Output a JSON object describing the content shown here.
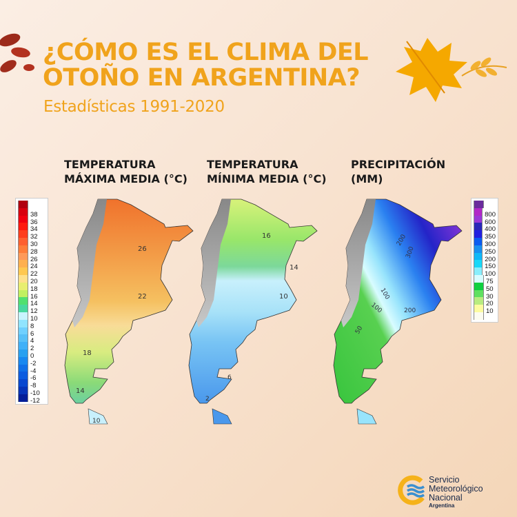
{
  "header": {
    "title_line1": "¿CÓMO ES EL CLIMA DEL",
    "title_line2": "OTOÑO EN ARGENTINA?",
    "subtitle": "Estadísticas 1991-2020",
    "accent_color": "#f0a31c"
  },
  "maps": [
    {
      "heading_line1": "TEMPERATURA",
      "heading_line2": "MÁXIMA MEDIA (°C)",
      "contour_labels": [
        "26",
        "22",
        "18",
        "14",
        "10"
      ]
    },
    {
      "heading_line1": "TEMPERATURA",
      "heading_line2": "MÍNIMA MEDIA (°C)",
      "contour_labels": [
        "16",
        "14",
        "10",
        "6",
        "2"
      ]
    },
    {
      "heading_line1": "PRECIPITACIÓN",
      "heading_line2": "(MM)",
      "contour_labels": [
        "200",
        "300",
        "100",
        "100",
        "200",
        "50"
      ]
    }
  ],
  "temp_legend": {
    "top_color": "#b00010",
    "items": [
      {
        "value": "38",
        "color": "#d8000f"
      },
      {
        "value": "36",
        "color": "#f00010"
      },
      {
        "value": "34",
        "color": "#ff1a10"
      },
      {
        "value": "32",
        "color": "#ff3e1e"
      },
      {
        "value": "30",
        "color": "#ff6030"
      },
      {
        "value": "28",
        "color": "#ff7e3a"
      },
      {
        "value": "26",
        "color": "#ff9a5a"
      },
      {
        "value": "24",
        "color": "#ffb050"
      },
      {
        "value": "22",
        "color": "#ffc850"
      },
      {
        "value": "20",
        "color": "#ffe08a"
      },
      {
        "value": "18",
        "color": "#e8ee70"
      },
      {
        "value": "16",
        "color": "#c0f060"
      },
      {
        "value": "14",
        "color": "#50e070"
      },
      {
        "value": "12",
        "color": "#48d8a0"
      },
      {
        "value": "10",
        "color": "#c8f4ff"
      },
      {
        "value": "8",
        "color": "#90e4ff"
      },
      {
        "value": "6",
        "color": "#70d0ff"
      },
      {
        "value": "4",
        "color": "#58c0f8"
      },
      {
        "value": "2",
        "color": "#40b0f8"
      },
      {
        "value": "0",
        "color": "#28a0f0"
      },
      {
        "value": "-2",
        "color": "#1888f0"
      },
      {
        "value": "-4",
        "color": "#1070e8"
      },
      {
        "value": "-6",
        "color": "#0c5ce0"
      },
      {
        "value": "-8",
        "color": "#0848d0"
      },
      {
        "value": "-10",
        "color": "#0634b8"
      },
      {
        "value": "-12",
        "color": "#041e98"
      }
    ]
  },
  "precip_legend": {
    "top_color": "#6a2c9c",
    "items": [
      {
        "value": "800",
        "color": "#b028c8"
      },
      {
        "value": "600",
        "color": "#9838d8"
      },
      {
        "value": "400",
        "color": "#2828b8"
      },
      {
        "value": "350",
        "color": "#2020e0"
      },
      {
        "value": "300",
        "color": "#0a5cf0"
      },
      {
        "value": "250",
        "color": "#1890f0"
      },
      {
        "value": "200",
        "color": "#10b8f8"
      },
      {
        "value": "150",
        "color": "#18d8f8"
      },
      {
        "value": "100",
        "color": "#88eefc"
      },
      {
        "value": "75",
        "color": "#d8fcff"
      },
      {
        "value": "50",
        "color": "#10d040"
      },
      {
        "value": "30",
        "color": "#60e060"
      },
      {
        "value": "20",
        "color": "#b8ec80"
      },
      {
        "value": "10",
        "color": "#fcfca0"
      }
    ],
    "bottom_color": "#fcfcf0"
  },
  "logo": {
    "line1": "Servicio",
    "line2": "Meteorológico",
    "line3": "Nacional",
    "line4": "Argentina"
  }
}
